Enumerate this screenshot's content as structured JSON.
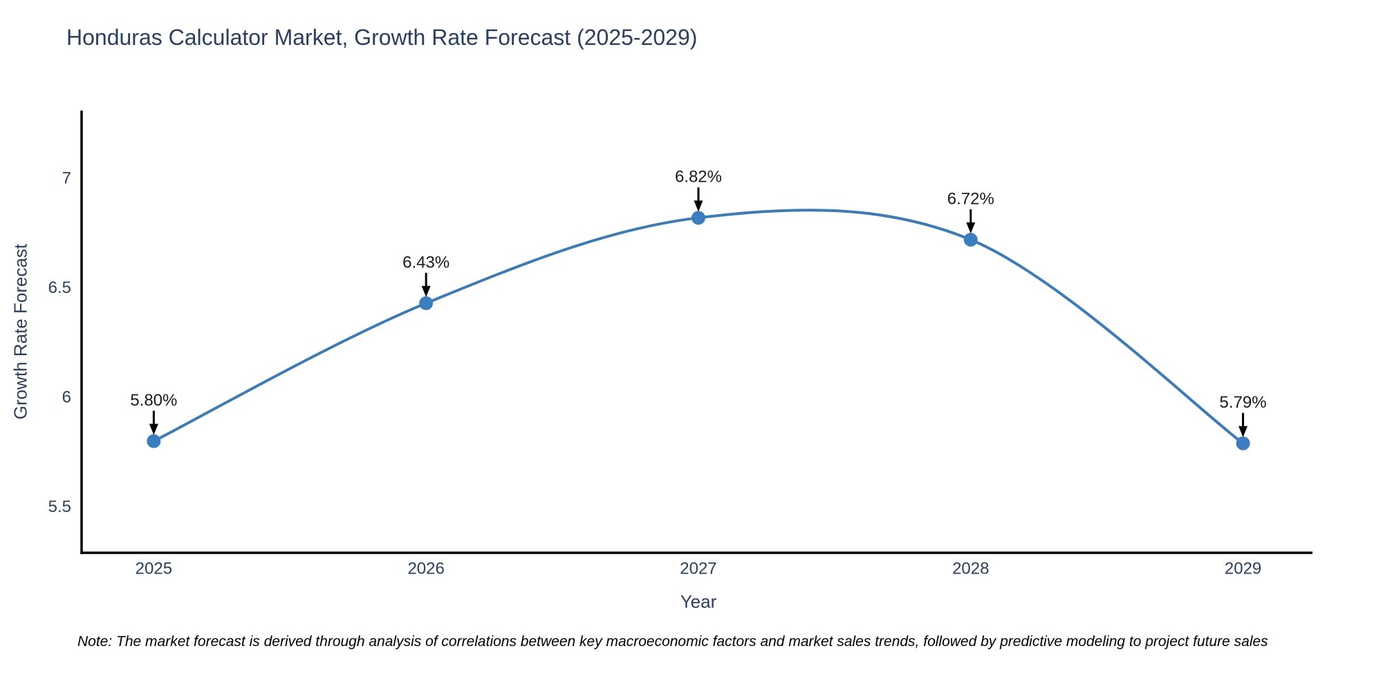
{
  "title": "Honduras Calculator Market, Growth Rate Forecast (2025-2029)",
  "note": "Note: The market forecast is derived through analysis of correlations between key macroeconomic factors and market sales trends, followed by predictive modeling to project future sales",
  "chart_data": {
    "type": "line",
    "title": "Honduras Calculator Market, Growth Rate Forecast (2025-2029)",
    "x": [
      2025,
      2026,
      2027,
      2028,
      2029
    ],
    "series": [
      {
        "name": "Growth Rate Forecast",
        "values": [
          5.8,
          6.43,
          6.82,
          6.72,
          5.79
        ]
      }
    ],
    "point_labels": [
      "5.80%",
      "6.43%",
      "6.82%",
      "6.72%",
      "5.79%"
    ],
    "xlabel": "Year",
    "ylabel": "Growth Rate Forecast",
    "xticks": [
      "2025",
      "2026",
      "2027",
      "2028",
      "2029"
    ],
    "yticks": [
      5.5,
      6,
      6.5,
      7
    ],
    "xlim": [
      2024.735,
      2029.255
    ],
    "ylim": [
      5.29,
      7.31
    ],
    "grid": false,
    "legend": false,
    "line_shape": "spline",
    "annotations_have_arrows": true,
    "colors": {
      "line": "#3b7cb8",
      "marker": "#3a7ebf",
      "axis": "#000000",
      "tick_text": "#2a3f5f",
      "annotation_text": "#1a1a1a",
      "annotation_arrow": "#000000"
    }
  }
}
